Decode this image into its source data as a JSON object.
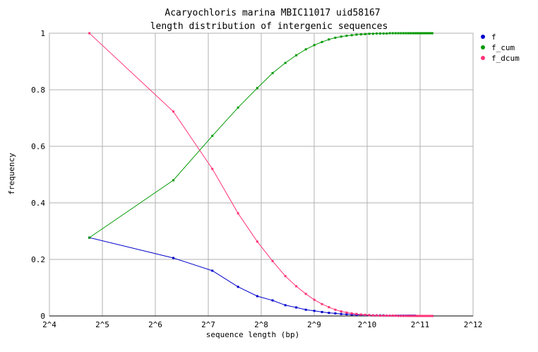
{
  "chart_data": {
    "type": "line",
    "title": "Acaryochloris marina MBIC11017 uid58167",
    "subtitle": "length distribution of intergenic sequences",
    "xlabel": "sequence length (bp)",
    "ylabel": "frequency",
    "x_scale": "log2",
    "xlim": [
      16,
      4096
    ],
    "ylim": [
      0,
      1
    ],
    "x_ticks": [
      16,
      32,
      64,
      128,
      256,
      512,
      1024,
      2048,
      4096
    ],
    "x_tick_labels": [
      "2^4",
      "2^5",
      "2^6",
      "2^7",
      "2^8",
      "2^9",
      "2^10",
      "2^11",
      "2^12"
    ],
    "y_ticks": [
      0,
      0.2,
      0.4,
      0.6,
      0.8,
      1
    ],
    "y_tick_labels": [
      "0",
      "0.2",
      "0.4",
      "0.6",
      "0.8",
      "1"
    ],
    "grid": true,
    "legend_position": "top-right",
    "x": [
      27,
      81,
      135,
      189,
      243,
      297,
      351,
      405,
      459,
      513,
      567,
      621,
      675,
      729,
      783,
      837,
      891,
      945,
      999,
      1053,
      1107,
      1161,
      1215,
      1269,
      1323,
      1377,
      1431,
      1485,
      1539,
      1593,
      1647,
      1701,
      1755,
      1809,
      1863,
      1917,
      1971,
      2025,
      2079,
      2133,
      2187,
      2241,
      2295,
      2349,
      2403
    ],
    "series": [
      {
        "name": "f",
        "color": "#0000cc",
        "values": [
          0.277,
          0.205,
          0.16,
          0.103,
          0.07,
          0.055,
          0.038,
          0.03,
          0.022,
          0.018,
          0.014,
          0.011,
          0.009,
          0.007,
          0.006,
          0.005,
          0.004,
          0.004,
          0.003,
          0.003,
          0.002,
          0.002,
          0.002,
          0.002,
          0.001,
          0.001,
          0.001,
          0.001,
          0.001,
          0.001,
          0.001,
          0.001,
          0.001,
          0.001,
          0.001,
          0.001,
          0.0,
          0.0,
          0.0,
          0.0,
          0.0,
          0.0,
          0.0,
          0.0,
          0.0
        ]
      },
      {
        "name": "f_cum",
        "color": "#009900",
        "values": [
          0.277,
          0.48,
          0.637,
          0.737,
          0.806,
          0.859,
          0.895,
          0.922,
          0.943,
          0.958,
          0.969,
          0.978,
          0.984,
          0.988,
          0.991,
          0.993,
          0.995,
          0.996,
          0.997,
          0.998,
          0.998,
          0.999,
          0.999,
          0.999,
          0.999,
          1.0,
          1.0,
          1.0,
          1.0,
          1.0,
          1.0,
          1.0,
          1.0,
          1.0,
          1.0,
          1.0,
          1.0,
          1.0,
          1.0,
          1.0,
          1.0,
          1.0,
          1.0,
          1.0,
          1.0
        ]
      },
      {
        "name": "f_dcum",
        "color": "#ff3377",
        "values": [
          1.0,
          0.723,
          0.52,
          0.363,
          0.263,
          0.194,
          0.141,
          0.105,
          0.078,
          0.057,
          0.042,
          0.031,
          0.022,
          0.016,
          0.012,
          0.009,
          0.007,
          0.005,
          0.004,
          0.003,
          0.002,
          0.002,
          0.001,
          0.001,
          0.001,
          0.001,
          0.001,
          0.001,
          0.0,
          0.0,
          0.0,
          0.0,
          0.0,
          0.0,
          0.0,
          0.0,
          0.0,
          0.0,
          0.0,
          0.0,
          0.0,
          0.0,
          0.0,
          0.0,
          0.0
        ]
      }
    ]
  }
}
